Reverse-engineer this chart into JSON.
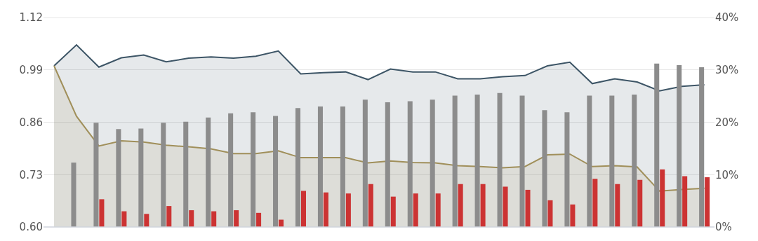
{
  "chart_data": {
    "type": "area",
    "categories": [
      null,
      null,
      null,
      null,
      null,
      null,
      null,
      null,
      null,
      null,
      null,
      null,
      null,
      null,
      null,
      null,
      null,
      null,
      null,
      null,
      null,
      null,
      null,
      null,
      null,
      null,
      null,
      null,
      null,
      null
    ],
    "series": [
      {
        "color": "#3d5566",
        "values": [
          1.0,
          1.052,
          0.997,
          1.02,
          1.027,
          1.01,
          1.019,
          1.022,
          1.019,
          1.024,
          1.037,
          0.98,
          0.983,
          0.985,
          0.966,
          0.992,
          0.985,
          0.985,
          0.968,
          0.968,
          0.973,
          0.976,
          1.0,
          1.009,
          0.956,
          0.968,
          0.96,
          0.938,
          0.949,
          0.953
        ]
      },
      {
        "color": "#a08f5a",
        "values": [
          1.0,
          0.875,
          0.801,
          0.814,
          0.811,
          0.803,
          0.799,
          0.794,
          0.782,
          0.782,
          0.789,
          0.772,
          0.772,
          0.772,
          0.759,
          0.764,
          0.76,
          0.759,
          0.752,
          0.75,
          0.747,
          0.75,
          0.779,
          0.781,
          0.75,
          0.752,
          0.749,
          0.689,
          0.693,
          0.696
        ]
      },
      {
        "type": "bar",
        "axis": "y2",
        "color": "#8c8c8c",
        "values": [
          null,
          12.3,
          19.9,
          18.7,
          18.8,
          19.9,
          20.1,
          20.9,
          21.7,
          21.9,
          21.2,
          22.7,
          23.0,
          23.0,
          24.3,
          23.8,
          24.0,
          24.3,
          25.1,
          25.3,
          25.6,
          25.1,
          22.3,
          21.9,
          25.1,
          25.1,
          25.3,
          31.2,
          30.9,
          30.5
        ]
      },
      {
        "type": "bar",
        "axis": "y2",
        "color": "#cc3333",
        "values": [
          null,
          null,
          5.3,
          3.0,
          2.5,
          4.0,
          3.2,
          3.0,
          3.2,
          2.7,
          1.4,
          6.9,
          6.6,
          6.4,
          8.2,
          5.8,
          6.4,
          6.4,
          8.2,
          8.2,
          7.7,
          7.1,
          5.1,
          4.3,
          9.2,
          8.2,
          9.0,
          11.0,
          9.7,
          9.5
        ]
      }
    ],
    "ylim": [
      0.6,
      1.12
    ],
    "yticks": [
      {
        "value": 0.6,
        "label": "0.60"
      },
      {
        "value": 0.73,
        "label": "0.73"
      },
      {
        "value": 0.86,
        "label": "0.86"
      },
      {
        "value": 0.99,
        "label": "0.99"
      },
      {
        "value": 1.12,
        "label": "1.12"
      }
    ],
    "y2lim": [
      0,
      40
    ],
    "y2ticks": [
      {
        "value": 0,
        "label": "0%"
      },
      {
        "value": 10,
        "label": "10%"
      },
      {
        "value": 20,
        "label": "20%"
      },
      {
        "value": 30,
        "label": "30%"
      },
      {
        "value": 40,
        "label": "40%"
      }
    ],
    "grid": "y",
    "tick_labels": "y"
  }
}
